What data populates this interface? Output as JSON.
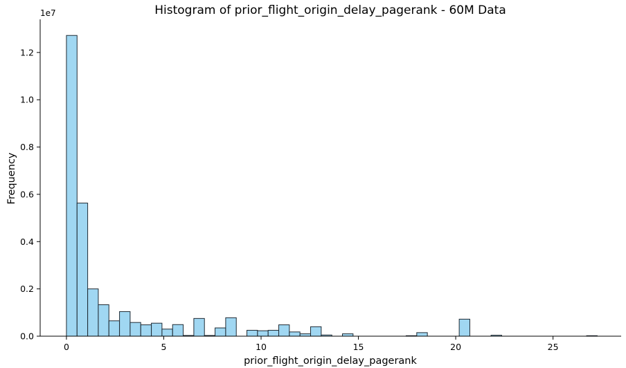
{
  "chart_data": {
    "type": "bar",
    "title": "Histogram of prior_flight_origin_delay_pagerank - 60M Data",
    "xlabel": "prior_flight_origin_delay_pagerank",
    "ylabel": "Frequency",
    "y_offset_text": "1e7",
    "xlim": [
      -1.35,
      28.5
    ],
    "ylim": [
      0,
      1.34
    ],
    "x_ticks": [
      0,
      5,
      10,
      15,
      20,
      25
    ],
    "x_tick_labels": [
      "0",
      "5",
      "10",
      "15",
      "20",
      "25"
    ],
    "y_ticks": [
      0,
      0.2,
      0.4,
      0.6,
      0.8,
      1.0,
      1.2
    ],
    "y_tick_labels": [
      "0.0",
      "0.2",
      "0.4",
      "0.6",
      "0.8",
      "1.0",
      "1.2"
    ],
    "bin_start": 0.0,
    "bin_width": 0.5454,
    "values": [
      1.272,
      0.563,
      0.2,
      0.133,
      0.065,
      0.104,
      0.058,
      0.048,
      0.055,
      0.03,
      0.049,
      0.003,
      0.075,
      0.003,
      0.035,
      0.078,
      0.0,
      0.025,
      0.023,
      0.025,
      0.048,
      0.018,
      0.01,
      0.04,
      0.005,
      0.0,
      0.01,
      0.0,
      0.0,
      0.0,
      0.0,
      0.0,
      0.002,
      0.015,
      0.0,
      0.0,
      0.0,
      0.072,
      0.0,
      0.0,
      0.004,
      0.0,
      0.0,
      0.0,
      0.0,
      0.0,
      0.0,
      0.0,
      0.0,
      0.002
    ],
    "grid": false,
    "legend": "none",
    "bar_color": "#8fd0f0",
    "edge_color": "#1f2a33"
  }
}
